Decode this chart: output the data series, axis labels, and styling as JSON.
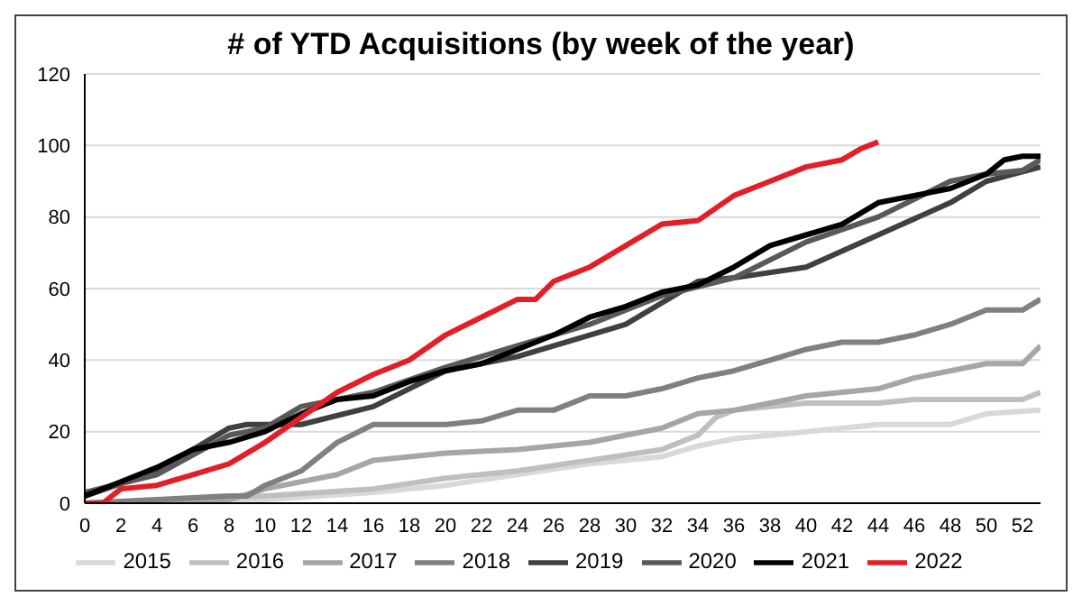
{
  "chart_data": {
    "type": "line",
    "title": "# of YTD Acquisitions  (by week of the year)",
    "xlim": [
      0,
      53
    ],
    "xticks": [
      0,
      2,
      4,
      6,
      8,
      10,
      12,
      14,
      16,
      18,
      20,
      22,
      24,
      26,
      28,
      30,
      32,
      34,
      36,
      38,
      40,
      42,
      44,
      46,
      48,
      50,
      52
    ],
    "ylim": [
      0,
      120
    ],
    "yticks": [
      0,
      20,
      40,
      60,
      80,
      100,
      120
    ],
    "grid": "y",
    "legend": "bottom",
    "marker": "none",
    "line_style": "solid",
    "series": [
      {
        "name": "2015",
        "color": "#d9d9d9",
        "x": [
          0,
          10,
          16,
          20,
          24,
          28,
          32,
          34,
          36,
          40,
          44,
          48,
          50,
          53
        ],
        "values": [
          0,
          1,
          3,
          5,
          8,
          11,
          13,
          16,
          18,
          20,
          22,
          22,
          25,
          26
        ]
      },
      {
        "name": "2016",
        "color": "#bfbfbf",
        "x": [
          0,
          10,
          16,
          20,
          24,
          28,
          32,
          34,
          35,
          36,
          40,
          44,
          46,
          50,
          52,
          53
        ],
        "values": [
          0,
          2,
          4,
          7,
          9,
          12,
          15,
          19,
          24,
          26,
          28,
          28,
          29,
          29,
          29,
          31
        ]
      },
      {
        "name": "2017",
        "color": "#a6a6a6",
        "x": [
          0,
          8,
          10,
          14,
          16,
          18,
          20,
          24,
          28,
          32,
          34,
          36,
          38,
          40,
          44,
          46,
          48,
          50,
          52,
          53
        ],
        "values": [
          0,
          1,
          4,
          8,
          12,
          13,
          14,
          15,
          17,
          21,
          25,
          26,
          28,
          30,
          32,
          35,
          37,
          39,
          39,
          44
        ]
      },
      {
        "name": "2018",
        "color": "#808080",
        "x": [
          0,
          8,
          9,
          10,
          12,
          14,
          16,
          20,
          22,
          24,
          26,
          28,
          30,
          32,
          34,
          36,
          38,
          40,
          42,
          44,
          46,
          48,
          50,
          52,
          53
        ],
        "values": [
          0,
          2,
          2,
          5,
          9,
          17,
          22,
          22,
          23,
          26,
          26,
          30,
          30,
          32,
          35,
          37,
          40,
          43,
          45,
          45,
          47,
          50,
          54,
          54,
          57
        ]
      },
      {
        "name": "2019",
        "color": "#404040",
        "x": [
          0,
          4,
          8,
          9,
          12,
          16,
          20,
          24,
          28,
          30,
          34,
          36,
          40,
          44,
          48,
          50,
          53
        ],
        "values": [
          2,
          9,
          21,
          22,
          22,
          27,
          37,
          41,
          47,
          50,
          62,
          63,
          66,
          75,
          84,
          90,
          94
        ]
      },
      {
        "name": "2020",
        "color": "#595959",
        "x": [
          0,
          4,
          8,
          10,
          12,
          16,
          20,
          24,
          28,
          32,
          36,
          40,
          44,
          48,
          50,
          52,
          53
        ],
        "values": [
          3,
          8,
          19,
          21,
          27,
          31,
          38,
          44,
          50,
          58,
          63,
          73,
          80,
          90,
          92,
          93,
          96
        ]
      },
      {
        "name": "2021",
        "color": "#000000",
        "x": [
          0,
          2,
          4,
          6,
          8,
          10,
          12,
          14,
          16,
          18,
          20,
          22,
          24,
          26,
          28,
          30,
          32,
          34,
          36,
          38,
          40,
          42,
          44,
          46,
          48,
          50,
          51,
          52,
          53
        ],
        "values": [
          2,
          6,
          10,
          15,
          17,
          20,
          25,
          29,
          30,
          34,
          37,
          39,
          43,
          47,
          52,
          55,
          59,
          61,
          66,
          72,
          75,
          78,
          84,
          86,
          88,
          92,
          96,
          97,
          97
        ]
      },
      {
        "name": "2022",
        "color": "#e41e26",
        "x": [
          0,
          1,
          2,
          4,
          6,
          8,
          10,
          12,
          14,
          16,
          18,
          20,
          22,
          24,
          25,
          26,
          28,
          30,
          32,
          34,
          36,
          38,
          40,
          42,
          43,
          44
        ],
        "values": [
          0,
          0,
          4,
          5,
          8,
          11,
          17,
          24,
          31,
          36,
          40,
          47,
          52,
          57,
          57,
          62,
          66,
          72,
          78,
          79,
          86,
          90,
          94,
          96,
          99,
          101
        ]
      }
    ]
  }
}
